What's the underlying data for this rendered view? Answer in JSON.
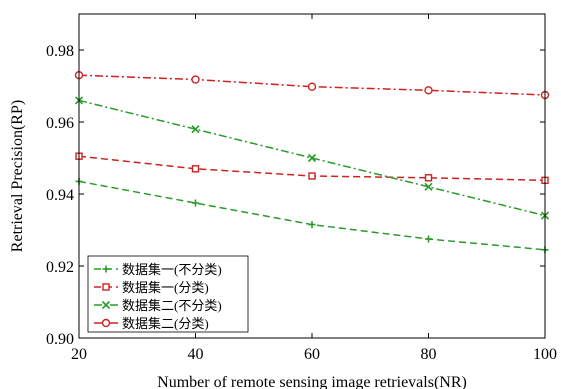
{
  "chart_data": {
    "type": "line",
    "title": "",
    "xlabel": "Number of remote sensing image retrievals(NR)",
    "ylabel": "Retrieval Precision(RP)",
    "xlim": [
      20,
      100
    ],
    "ylim": [
      0.9,
      0.99
    ],
    "x": [
      20,
      40,
      60,
      80,
      100
    ],
    "x_ticks": [
      "20",
      "40",
      "60",
      "80",
      "100"
    ],
    "y_tick_values": [
      0.9,
      0.92,
      0.94,
      0.96,
      0.98
    ],
    "y_ticks": [
      "0.90",
      "0.92",
      "0.94",
      "0.96",
      "0.98"
    ],
    "grid": false,
    "legend_position": "bottom-left",
    "series": [
      {
        "name": "数据集一(不分类)",
        "values": [
          0.9435,
          0.9375,
          0.9315,
          0.9275,
          0.9245
        ],
        "color": "#2a9a2a",
        "line_style": "dashed",
        "marker": "plus"
      },
      {
        "name": "数据集一(分类)",
        "values": [
          0.9505,
          0.947,
          0.945,
          0.9445,
          0.9438
        ],
        "color": "#cc2222",
        "line_style": "dashed",
        "marker": "square"
      },
      {
        "name": "数据集二(不分类)",
        "values": [
          0.966,
          0.958,
          0.95,
          0.942,
          0.934
        ],
        "color": "#2a9a2a",
        "line_style": "dashdot",
        "marker": "x"
      },
      {
        "name": "数据集二(分类)",
        "values": [
          0.973,
          0.9718,
          0.9698,
          0.9688,
          0.9675
        ],
        "color": "#cc2222",
        "line_style": "dashdot",
        "marker": "circle"
      }
    ]
  }
}
